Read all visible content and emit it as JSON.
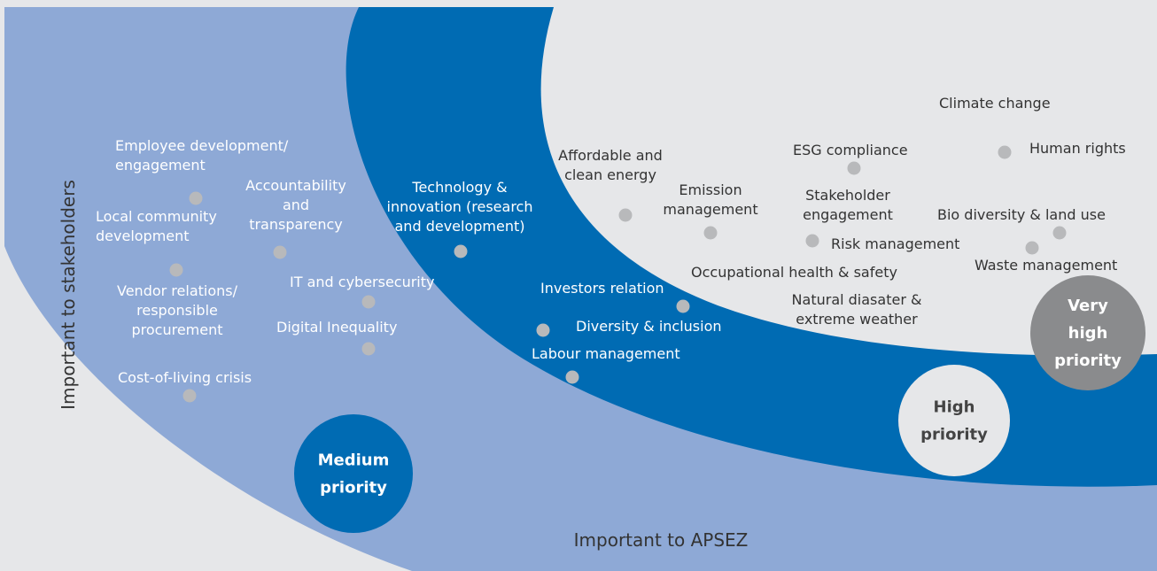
{
  "colors": {
    "background": "#e6e7e9",
    "medium_zone": "#8ea9d6",
    "high_zone": "#006bb3",
    "very_high_zone": "#e6e7e9",
    "marker": "#b8b9bb",
    "medium_badge": "#006bb3",
    "high_badge": "#e6e7e9",
    "very_high_badge": "#8a8b8d"
  },
  "axes": {
    "x_label": "Important to APSEZ",
    "y_label": "Important to stakeholders"
  },
  "zones": {
    "medium": [
      "Medium",
      "priority"
    ],
    "high": [
      "High",
      "priority"
    ],
    "very_high": [
      "Very",
      "high",
      "priority"
    ]
  },
  "topics": {
    "medium": [
      {
        "id": "employee-development",
        "lines": [
          "Employee development/",
          "engagement"
        ]
      },
      {
        "id": "local-community",
        "lines": [
          "Local community",
          "development"
        ]
      },
      {
        "id": "accountability",
        "lines": [
          "Accountability",
          "and",
          "transparency"
        ]
      },
      {
        "id": "vendor-relations",
        "lines": [
          "Vendor relations/",
          "responsible",
          "procurement"
        ]
      },
      {
        "id": "it-cybersecurity",
        "lines": [
          "IT and cybersecurity"
        ]
      },
      {
        "id": "digital-inequality",
        "lines": [
          "Digital Inequality"
        ]
      },
      {
        "id": "cost-of-living",
        "lines": [
          "Cost-of-living crisis"
        ]
      }
    ],
    "high": [
      {
        "id": "technology-innovation",
        "lines": [
          "Technology &",
          "innovation (research",
          "and development)"
        ]
      },
      {
        "id": "investors-relation",
        "lines": [
          "Investors relation"
        ]
      },
      {
        "id": "diversity-inclusion",
        "lines": [
          "Diversity & inclusion"
        ]
      },
      {
        "id": "labour-management",
        "lines": [
          "Labour management"
        ]
      }
    ],
    "very_high": [
      {
        "id": "climate-change",
        "lines": [
          "Climate change"
        ]
      },
      {
        "id": "affordable-energy",
        "lines": [
          "Affordable and",
          "clean energy"
        ]
      },
      {
        "id": "esg-compliance",
        "lines": [
          "ESG compliance"
        ]
      },
      {
        "id": "human-rights",
        "lines": [
          "Human rights"
        ]
      },
      {
        "id": "emission-management",
        "lines": [
          "Emission",
          "management"
        ]
      },
      {
        "id": "stakeholder-engagement",
        "lines": [
          "Stakeholder",
          "engagement"
        ]
      },
      {
        "id": "bio-diversity",
        "lines": [
          "Bio diversity & land use"
        ]
      },
      {
        "id": "risk-management",
        "lines": [
          "Risk management"
        ]
      },
      {
        "id": "waste-management",
        "lines": [
          "Waste management"
        ]
      },
      {
        "id": "occupational-health",
        "lines": [
          "Occupational health & safety"
        ]
      },
      {
        "id": "natural-disaster",
        "lines": [
          "Natural diasater &",
          "extreme weather"
        ]
      }
    ]
  }
}
